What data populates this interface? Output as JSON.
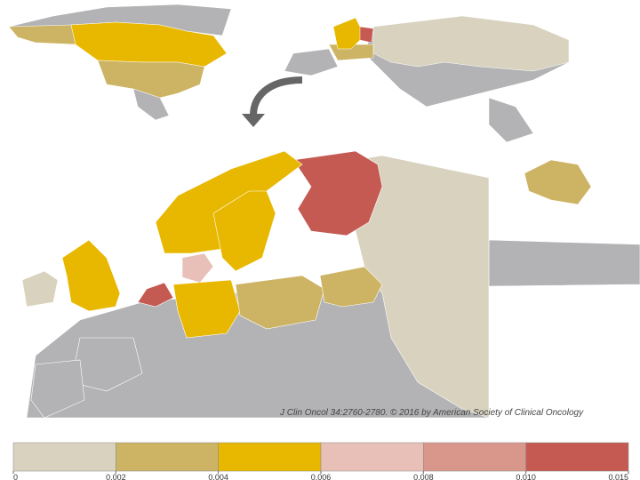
{
  "citation": "J Clin Oncol 34:2760-2780. © 2016 by American Society of Clinical Oncology",
  "legend": {
    "colors": [
      "#d8d2bf",
      "#cdb464",
      "#e8b800",
      "#e8c0b8",
      "#d9978c",
      "#c45a52"
    ],
    "ticks": [
      0,
      0.002,
      0.004,
      0.006,
      0.008,
      {
        "value": 0.01,
        "label": "0.010"
      },
      0.015
    ]
  }
}
